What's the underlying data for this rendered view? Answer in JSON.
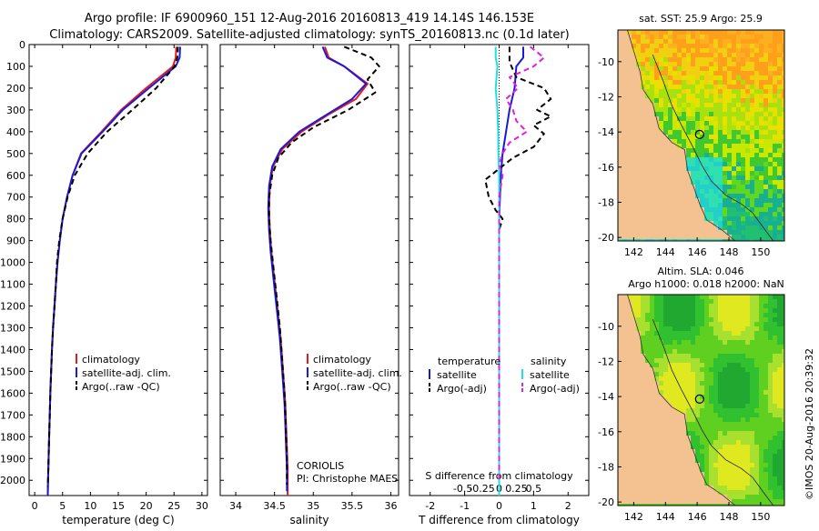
{
  "header": {
    "line1": "Argo profile: IF 6900960_151 12-Aug-2016 20160813_419 14.14S 146.153E",
    "line2": "Climatology: CARS2009. Satellite-adjusted climatology: synTS_20160813.nc (0.1d later)"
  },
  "side_text": "©IMOS 20-Aug-2016 20:39:32",
  "colors": {
    "red": "#e41a1c",
    "blue": "#1a1adc",
    "black": "#000000",
    "cyan": "#22e0e0",
    "magenta": "#e020e0",
    "land": "#f4c290"
  },
  "chart_data": [
    {
      "type": "line",
      "id": "temperature",
      "xlabel": "temperature (deg C)",
      "xlim": [
        -1,
        31
      ],
      "xticks": [
        0,
        5,
        10,
        15,
        20,
        25,
        30
      ],
      "ylim": [
        2070,
        0
      ],
      "yticks": [
        0,
        100,
        200,
        300,
        400,
        500,
        600,
        700,
        800,
        900,
        1000,
        1100,
        1200,
        1300,
        1400,
        1500,
        1600,
        1700,
        1800,
        1900,
        2000
      ],
      "legend": [
        "climatology",
        "satellite-adj. clim.",
        "Argo(..raw -QC)"
      ],
      "series": [
        {
          "name": "climatology",
          "color": "#e41a1c",
          "dash": "",
          "points": [
            [
              25.4,
              10
            ],
            [
              25.3,
              60
            ],
            [
              24.8,
              100
            ],
            [
              20,
              200
            ],
            [
              15.5,
              300
            ],
            [
              12,
              400
            ],
            [
              8.3,
              500
            ],
            [
              6.8,
              600
            ],
            [
              5.8,
              700
            ],
            [
              5,
              800
            ],
            [
              4.5,
              900
            ],
            [
              4.1,
              1000
            ],
            [
              3.8,
              1100
            ],
            [
              3.55,
              1200
            ],
            [
              3.3,
              1300
            ],
            [
              3.1,
              1400
            ],
            [
              2.95,
              1500
            ],
            [
              2.8,
              1600
            ],
            [
              2.7,
              1700
            ],
            [
              2.6,
              1800
            ],
            [
              2.5,
              1900
            ],
            [
              2.4,
              2000
            ],
            [
              2.35,
              2070
            ]
          ]
        },
        {
          "name": "satellite-adj. clim.",
          "color": "#1a1adc",
          "dash": "",
          "points": [
            [
              26.1,
              10
            ],
            [
              26,
              60
            ],
            [
              25.3,
              100
            ],
            [
              20.5,
              200
            ],
            [
              15.8,
              300
            ],
            [
              12.2,
              400
            ],
            [
              8.4,
              500
            ],
            [
              6.8,
              600
            ],
            [
              5.8,
              700
            ],
            [
              5,
              800
            ],
            [
              4.5,
              900
            ],
            [
              4.1,
              1000
            ],
            [
              3.8,
              1100
            ],
            [
              3.55,
              1200
            ],
            [
              3.3,
              1300
            ],
            [
              3.1,
              1400
            ],
            [
              2.95,
              1500
            ],
            [
              2.8,
              1600
            ],
            [
              2.7,
              1700
            ],
            [
              2.6,
              1800
            ],
            [
              2.5,
              1900
            ],
            [
              2.4,
              2000
            ],
            [
              2.35,
              2070
            ]
          ]
        },
        {
          "name": "Argo(..raw -QC)",
          "color": "#000000",
          "dash": "6,4",
          "points": [
            [
              25.7,
              10
            ],
            [
              25.6,
              60
            ],
            [
              25.1,
              100
            ],
            [
              21.8,
              200
            ],
            [
              17.5,
              300
            ],
            [
              13,
              400
            ],
            [
              9.5,
              500
            ],
            [
              7.2,
              600
            ],
            [
              5.9,
              700
            ],
            [
              5,
              800
            ],
            [
              4.4,
              900
            ],
            [
              4,
              1000
            ],
            [
              3.8,
              1100
            ],
            [
              3.55,
              1200
            ],
            [
              3.3,
              1300
            ],
            [
              3.1,
              1400
            ],
            [
              2.95,
              1500
            ],
            [
              2.8,
              1600
            ],
            [
              2.7,
              1700
            ],
            [
              2.6,
              1800
            ],
            [
              2.5,
              1900
            ],
            [
              2.4,
              2000
            ],
            [
              2.35,
              2030
            ]
          ]
        }
      ]
    },
    {
      "type": "line",
      "id": "salinity",
      "xlabel": "salinity",
      "xlim": [
        33.8,
        36.1
      ],
      "xticks": [
        34,
        34.5,
        35,
        35.5,
        36
      ],
      "ylim": [
        2070,
        0
      ],
      "legend": [
        "climatology",
        "satellite-adj. clim.",
        "Argo(..raw -QC)"
      ],
      "annotations": [
        "CORIOLIS",
        "PI: Christophe MAES"
      ],
      "series": [
        {
          "name": "climatology",
          "color": "#e41a1c",
          "dash": "",
          "points": [
            [
              35.15,
              10
            ],
            [
              35.2,
              60
            ],
            [
              35.4,
              100
            ],
            [
              35.7,
              180
            ],
            [
              35.55,
              250
            ],
            [
              35.2,
              320
            ],
            [
              34.85,
              400
            ],
            [
              34.6,
              480
            ],
            [
              34.48,
              560
            ],
            [
              34.44,
              650
            ],
            [
              34.43,
              750
            ],
            [
              34.44,
              850
            ],
            [
              34.46,
              950
            ],
            [
              34.49,
              1050
            ],
            [
              34.52,
              1150
            ],
            [
              34.55,
              1250
            ],
            [
              34.58,
              1350
            ],
            [
              34.6,
              1450
            ],
            [
              34.62,
              1550
            ],
            [
              34.64,
              1650
            ],
            [
              34.65,
              1750
            ],
            [
              34.66,
              1850
            ],
            [
              34.67,
              1950
            ],
            [
              34.67,
              2070
            ]
          ]
        },
        {
          "name": "satellite-adj. clim.",
          "color": "#1a1adc",
          "dash": "",
          "points": [
            [
              35.12,
              10
            ],
            [
              35.18,
              60
            ],
            [
              35.4,
              100
            ],
            [
              35.68,
              180
            ],
            [
              35.5,
              250
            ],
            [
              35.18,
              320
            ],
            [
              34.82,
              400
            ],
            [
              34.58,
              480
            ],
            [
              34.47,
              560
            ],
            [
              34.43,
              650
            ],
            [
              34.42,
              750
            ],
            [
              34.43,
              850
            ],
            [
              34.45,
              950
            ],
            [
              34.48,
              1050
            ],
            [
              34.51,
              1150
            ],
            [
              34.54,
              1250
            ],
            [
              34.57,
              1350
            ],
            [
              34.59,
              1450
            ],
            [
              34.61,
              1550
            ],
            [
              34.63,
              1650
            ],
            [
              34.64,
              1750
            ],
            [
              34.65,
              1850
            ],
            [
              34.66,
              1950
            ],
            [
              34.66,
              2050
            ]
          ]
        },
        {
          "name": "Argo(..raw -QC)",
          "color": "#000000",
          "dash": "6,4",
          "points": [
            [
              35.4,
              10
            ],
            [
              35.75,
              60
            ],
            [
              35.85,
              100
            ],
            [
              35.7,
              160
            ],
            [
              35.8,
              220
            ],
            [
              35.45,
              300
            ],
            [
              35,
              380
            ],
            [
              34.72,
              450
            ],
            [
              34.55,
              520
            ],
            [
              34.47,
              600
            ],
            [
              34.43,
              700
            ],
            [
              34.43,
              800
            ],
            [
              34.45,
              900
            ],
            [
              34.48,
              1000
            ],
            [
              34.51,
              1100
            ],
            [
              34.54,
              1200
            ],
            [
              34.57,
              1300
            ],
            [
              34.59,
              1400
            ],
            [
              34.61,
              1500
            ],
            [
              34.63,
              1600
            ],
            [
              34.64,
              1700
            ],
            [
              34.65,
              1800
            ],
            [
              34.66,
              1900
            ],
            [
              34.66,
              2020
            ]
          ]
        }
      ]
    },
    {
      "type": "line",
      "id": "difference",
      "xlabel": "T difference from climatology",
      "x2label": "S difference from climatology",
      "xlim": [
        -2.6,
        2.6
      ],
      "xticks": [
        -2,
        -1,
        0,
        1,
        2
      ],
      "x2ticks": [
        "-0.5",
        "-0.25",
        "0",
        "0.25",
        "0.5"
      ],
      "ylim": [
        2070,
        0
      ],
      "legend_left_title": "temperature",
      "legend_right_title": "salinity",
      "legend": [
        "satellite",
        "Argo(-adj)",
        "satellite",
        "Argo(-adj)"
      ],
      "series": [
        {
          "name": "satellite",
          "group": "temperature",
          "color": "#1a1adc",
          "dash": "",
          "points": [
            [
              0.7,
              10
            ],
            [
              0.7,
              60
            ],
            [
              0.5,
              100
            ],
            [
              0.45,
              200
            ],
            [
              0.3,
              300
            ],
            [
              0.2,
              400
            ],
            [
              0.1,
              500
            ],
            [
              0.05,
              600
            ],
            [
              0,
              800
            ],
            [
              0,
              1000
            ],
            [
              0,
              1500
            ],
            [
              0,
              2000
            ],
            [
              0,
              2070
            ]
          ]
        },
        {
          "name": "Argo(-adj)",
          "group": "temperature",
          "color": "#000000",
          "dash": "6,4",
          "points": [
            [
              0.3,
              10
            ],
            [
              0.3,
              80
            ],
            [
              0.5,
              150
            ],
            [
              1.3,
              200
            ],
            [
              1.5,
              250
            ],
            [
              1.1,
              300
            ],
            [
              1.5,
              330
            ],
            [
              1.0,
              370
            ],
            [
              1.3,
              410
            ],
            [
              1.0,
              470
            ],
            [
              0.4,
              520
            ],
            [
              0,
              570
            ],
            [
              -0.4,
              620
            ],
            [
              -0.3,
              700
            ],
            [
              -0.1,
              760
            ],
            [
              0.1,
              800
            ],
            [
              0,
              850
            ],
            [
              0,
              900
            ],
            [
              0,
              1000
            ],
            [
              0,
              1500
            ],
            [
              0,
              2000
            ]
          ]
        },
        {
          "name": "satellite",
          "group": "salinity",
          "color": "#22e0e0",
          "dash": "",
          "points": [
            [
              -0.1,
              10
            ],
            [
              -0.1,
              60
            ],
            [
              -0.05,
              100
            ],
            [
              -0.1,
              200
            ],
            [
              -0.05,
              300
            ],
            [
              -0.03,
              400
            ],
            [
              -0.02,
              500
            ],
            [
              0,
              600
            ],
            [
              0,
              800
            ],
            [
              0,
              1500
            ],
            [
              0,
              2000
            ],
            [
              0,
              2070
            ]
          ]
        },
        {
          "name": "Argo(-adj)",
          "group": "salinity",
          "color": "#e020e0",
          "dash": "6,4",
          "points": [
            [
              0.9,
              10
            ],
            [
              1.3,
              60
            ],
            [
              1.0,
              100
            ],
            [
              0.3,
              150
            ],
            [
              0.55,
              200
            ],
            [
              0.2,
              250
            ],
            [
              0.4,
              300
            ],
            [
              0.5,
              350
            ],
            [
              0.8,
              400
            ],
            [
              0.3,
              450
            ],
            [
              0.1,
              500
            ],
            [
              0,
              550
            ],
            [
              0.1,
              600
            ],
            [
              0,
              700
            ],
            [
              0,
              800
            ],
            [
              0,
              1000
            ],
            [
              0,
              1500
            ],
            [
              0,
              2000
            ]
          ]
        }
      ]
    },
    {
      "type": "heatmap",
      "id": "sst-map",
      "title": "sat. SST: 25.9 Argo: 25.9",
      "xlim": [
        141,
        151.5
      ],
      "ylim": [
        -20.2,
        -8.2
      ],
      "xticks": [
        142,
        144,
        146,
        148,
        150
      ],
      "yticks": [
        -10,
        -12,
        -14,
        -16,
        -18,
        -20
      ],
      "marker": [
        146.153,
        -14.14
      ]
    },
    {
      "type": "heatmap",
      "id": "sla-map",
      "title": "Altim. SLA: 0.046",
      "subtitle": "Argo h1000: 0.018 h2000: NaN",
      "xlim": [
        141,
        151.5
      ],
      "ylim": [
        -20.2,
        -8.2
      ],
      "xticks": [
        142,
        144,
        146,
        148,
        150
      ],
      "yticks": [
        -10,
        -12,
        -14,
        -16,
        -18,
        -20
      ],
      "marker": [
        146.153,
        -14.14
      ]
    }
  ]
}
